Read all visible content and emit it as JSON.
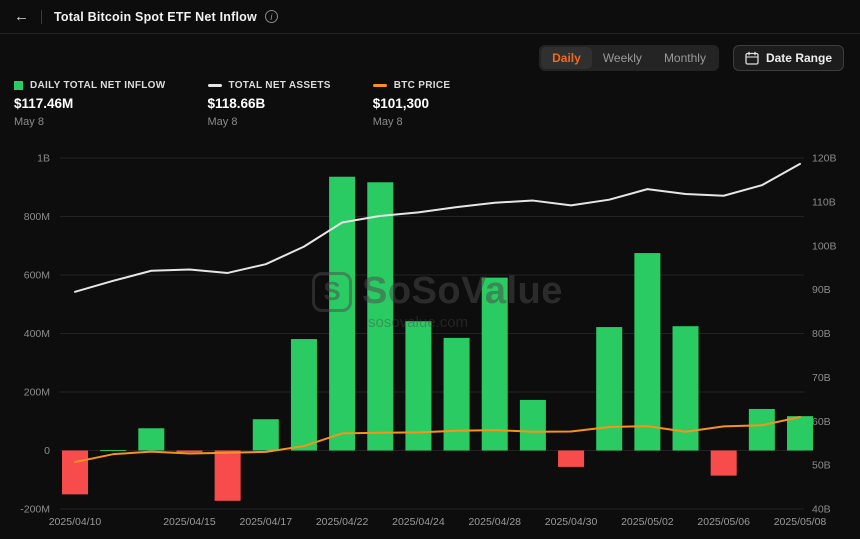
{
  "header": {
    "back_glyph": "←",
    "title": "Total Bitcoin Spot ETF Net Inflow",
    "info_glyph": "i"
  },
  "controls": {
    "tabs": [
      {
        "label": "Daily",
        "active": true
      },
      {
        "label": "Weekly",
        "active": false
      },
      {
        "label": "Monthly",
        "active": false
      }
    ],
    "active_tab_color": "#f06a1d",
    "date_range_label": "Date Range"
  },
  "legend": {
    "items": [
      {
        "label": "DAILY TOTAL NET INFLOW",
        "value": "$117.46M",
        "date": "May 8",
        "marker": "square",
        "color": "#2bcb63"
      },
      {
        "label": "TOTAL NET ASSETS",
        "value": "$118.66B",
        "date": "May 8",
        "marker": "dash",
        "color": "#e6e6e6"
      },
      {
        "label": "BTC PRICE",
        "value": "$101,300",
        "date": "May 8",
        "marker": "dash",
        "color": "#f7931a"
      }
    ]
  },
  "watermark": {
    "logo_glyph": "S",
    "main": "SoSoValue",
    "sub": "sosovalue.com"
  },
  "chart_data": {
    "type": "bar",
    "title": "Total Bitcoin Spot ETF Net Inflow",
    "x": [
      "2025/04/10",
      "2025/04/11",
      "2025/04/14",
      "2025/04/15",
      "2025/04/16",
      "2025/04/17",
      "2025/04/21",
      "2025/04/22",
      "2025/04/23",
      "2025/04/24",
      "2025/04/25",
      "2025/04/28",
      "2025/04/29",
      "2025/04/30",
      "2025/05/01",
      "2025/05/02",
      "2025/05/05",
      "2025/05/06",
      "2025/05/07",
      "2025/05/08"
    ],
    "x_label_indices": [
      0,
      3,
      5,
      7,
      9,
      11,
      13,
      15,
      17,
      19
    ],
    "series": [
      {
        "name": "Daily Total Net Inflow",
        "type": "bar",
        "unit": "M USD",
        "axis": "left",
        "values": [
          -150,
          1.5,
          76,
          -6,
          -172,
          107,
          381,
          936,
          917,
          442,
          385,
          591,
          173,
          -56,
          422,
          675,
          425,
          -86,
          142,
          117.46
        ],
        "color_positive": "#2bcb63",
        "color_negative": "#f84c4c"
      },
      {
        "name": "Total Net Assets",
        "type": "line",
        "unit": "B USD",
        "axis": "right",
        "values": [
          89.5,
          92.0,
          94.3,
          94.6,
          93.8,
          95.8,
          99.8,
          105.3,
          106.8,
          107.6,
          108.8,
          109.8,
          110.3,
          109.2,
          110.5,
          112.9,
          111.8,
          111.4,
          113.8,
          118.66
        ],
        "color": "#e6e6e6"
      },
      {
        "name": "BTC Price",
        "type": "line",
        "unit": "USD",
        "axis": "hidden",
        "values": [
          79600,
          83400,
          84600,
          83700,
          84100,
          84500,
          87300,
          93400,
          93700,
          93900,
          94700,
          95000,
          94200,
          94300,
          96500,
          96900,
          94200,
          96800,
          97300,
          101300
        ],
        "color": "#f7931a"
      }
    ],
    "left_axis": {
      "unit": "M",
      "min": -200,
      "max": 1000,
      "tick_values": [
        -200,
        0,
        200,
        400,
        600,
        800,
        1000
      ],
      "tick_labels": [
        "-200M",
        "0",
        "200M",
        "400M",
        "600M",
        "800M",
        "1B"
      ]
    },
    "right_axis": {
      "unit": "B",
      "min": 40,
      "max": 120,
      "tick_values": [
        40,
        50,
        60,
        70,
        80,
        90,
        100,
        110,
        120
      ],
      "tick_labels": [
        "40B",
        "50B",
        "60B",
        "70B",
        "80B",
        "90B",
        "100B",
        "110B",
        "120B"
      ]
    },
    "btc_axis": {
      "min": 57000,
      "max": 226000
    },
    "grid": true,
    "grid_color": "#232323",
    "axis_text_color": "#8c8c8c",
    "legend_position": "top-left"
  }
}
